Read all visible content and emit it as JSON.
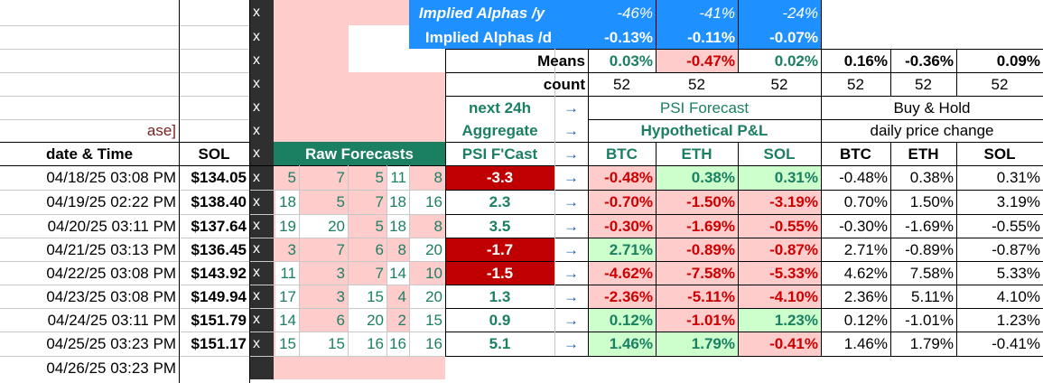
{
  "colors": {
    "dark_column": "#2f2f2f",
    "pink_fill": "#ffcccc",
    "blue_fill": "#1e90ff",
    "dark_green_fill": "#1b7f62",
    "red_fill": "#c00000",
    "light_green_fill": "#ccffcc",
    "green_text": "#1b7f62",
    "red_text": "#cc0000",
    "blue_text": "#1a5fb4"
  },
  "implied": {
    "annual_label": "Implied Alphas /y",
    "annual_values": [
      "-46%",
      "-41%",
      "-24%"
    ],
    "daily_label": "Implied Alphas /d",
    "daily_values": [
      "-0.13%",
      "-0.11%",
      "-0.07%"
    ]
  },
  "means": {
    "label": "Means",
    "pnl": [
      "0.03%",
      "-0.47%",
      "0.02%"
    ],
    "hold": [
      "0.16%",
      "-0.36%",
      "0.09%"
    ]
  },
  "count": {
    "label": "count",
    "pnl": [
      "52",
      "52",
      "52"
    ],
    "hold": [
      "52",
      "52",
      "52"
    ]
  },
  "headers": {
    "next24": "next 24h",
    "aggregate": "Aggregate",
    "psi_forecast": "PSI Forecast",
    "hypothetical_pnl": "Hypothetical P&L",
    "buy_hold": "Buy & Hold",
    "daily_change": "daily price change",
    "truncated": "ase]",
    "date_time": "date & Time",
    "sol": "SOL",
    "raw_forecasts": "Raw Forecasts",
    "psi_fcast": "PSI F'Cast",
    "assets": [
      "BTC",
      "ETH",
      "SOL"
    ],
    "arrow": "→"
  },
  "x_marks": [
    "x",
    "x",
    "x",
    "x",
    "x",
    "x",
    "x",
    "x",
    "x",
    "x",
    "x",
    "x",
    "x",
    "x",
    "x"
  ],
  "rows": [
    {
      "date": "04/18/25 03:08 PM",
      "price": "$134.05",
      "raw": [
        "5",
        "7",
        "5",
        "11",
        "8"
      ],
      "psi": "-3.3",
      "pnl": [
        "-0.48%",
        "0.38%",
        "0.31%"
      ],
      "hold": [
        "-0.48%",
        "0.38%",
        "0.31%"
      ]
    },
    {
      "date": "04/19/25 02:22 PM",
      "price": "$138.40",
      "raw": [
        "18",
        "5",
        "7",
        "18",
        "16"
      ],
      "psi": "2.3",
      "pnl": [
        "-0.70%",
        "-1.50%",
        "-3.19%"
      ],
      "hold": [
        "0.70%",
        "1.50%",
        "3.19%"
      ]
    },
    {
      "date": "04/20/25 03:11 PM",
      "price": "$137.64",
      "raw": [
        "19",
        "20",
        "5",
        "18",
        "8"
      ],
      "psi": "3.5",
      "pnl": [
        "-0.30%",
        "-1.69%",
        "-0.55%"
      ],
      "hold": [
        "-0.30%",
        "-1.69%",
        "-0.55%"
      ]
    },
    {
      "date": "04/21/25 03:13 PM",
      "price": "$136.45",
      "raw": [
        "3",
        "7",
        "6",
        "8",
        "20"
      ],
      "psi": "-1.7",
      "pnl": [
        "2.71%",
        "-0.89%",
        "-0.87%"
      ],
      "hold": [
        "2.71%",
        "-0.89%",
        "-0.87%"
      ]
    },
    {
      "date": "04/22/25 03:08 PM",
      "price": "$143.92",
      "raw": [
        "11",
        "3",
        "7",
        "14",
        "10"
      ],
      "psi": "-1.5",
      "pnl": [
        "-4.62%",
        "-7.58%",
        "-5.33%"
      ],
      "hold": [
        "4.62%",
        "7.58%",
        "5.33%"
      ]
    },
    {
      "date": "04/23/25 03:08 PM",
      "price": "$149.94",
      "raw": [
        "17",
        "3",
        "15",
        "4",
        "20"
      ],
      "psi": "1.3",
      "pnl": [
        "-2.36%",
        "-5.11%",
        "-4.10%"
      ],
      "hold": [
        "2.36%",
        "5.11%",
        "4.10%"
      ]
    },
    {
      "date": "04/24/25 03:11 PM",
      "price": "$151.79",
      "raw": [
        "14",
        "6",
        "20",
        "2",
        "15"
      ],
      "psi": "0.9",
      "pnl": [
        "0.12%",
        "-1.01%",
        "1.23%"
      ],
      "hold": [
        "0.12%",
        "-1.01%",
        "1.23%"
      ]
    },
    {
      "date": "04/25/25 03:23 PM",
      "price": "$151.17",
      "raw": [
        "15",
        "15",
        "16",
        "16",
        "16"
      ],
      "psi": "5.1",
      "pnl": [
        "1.46%",
        "1.79%",
        "-0.41%"
      ],
      "hold": [
        "1.46%",
        "1.79%",
        "-0.41%"
      ]
    },
    {
      "date": "04/26/25 03:23 PM"
    }
  ]
}
